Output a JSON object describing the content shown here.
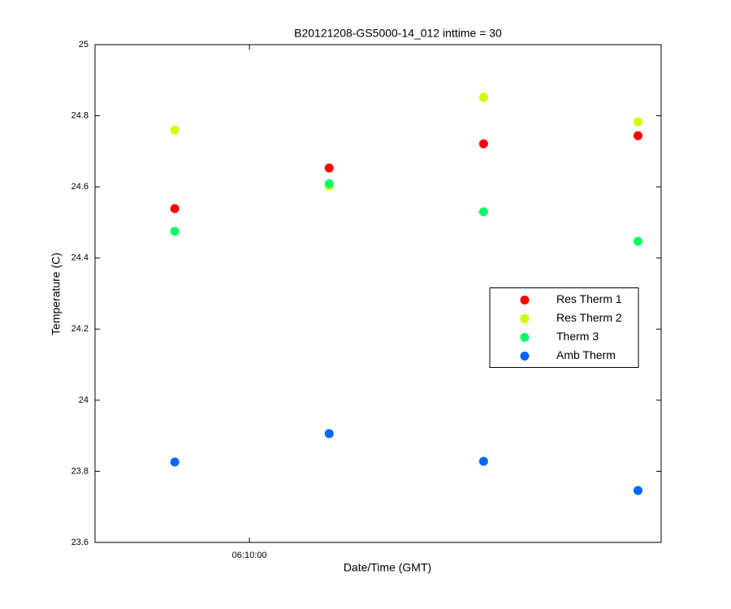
{
  "chart_data": {
    "type": "scatter",
    "title": "B20121208-GS5000-14_012 inttime = 30",
    "xlabel": "Date/Time (GMT)",
    "ylabel": "Temperature (C)",
    "x": [
      "06:09:31",
      "06:10:31",
      "06:11:31",
      "06:12:31"
    ],
    "xlim": [
      "06:09:00",
      "06:12:40"
    ],
    "xticks": [
      "06:10:00"
    ],
    "ylim": [
      23.6,
      25
    ],
    "yticks": [
      23.6,
      23.8,
      24,
      24.2,
      24.4,
      24.6,
      24.8,
      25
    ],
    "grid": false,
    "legend_loc": "east",
    "series": [
      {
        "name": "Res Therm 1",
        "color": "#ff0000",
        "values": [
          24.539,
          24.653,
          24.721,
          24.744
        ]
      },
      {
        "name": "Res Therm 2",
        "color": "#ccff00",
        "values": [
          24.76,
          24.603,
          24.852,
          24.783
        ]
      },
      {
        "name": "Therm 3",
        "color": "#00ff66",
        "values": [
          24.475,
          24.609,
          24.53,
          24.447
        ]
      },
      {
        "name": "Amb Therm",
        "color": "#0066ff",
        "values": [
          23.826,
          23.906,
          23.828,
          23.746
        ]
      }
    ]
  }
}
